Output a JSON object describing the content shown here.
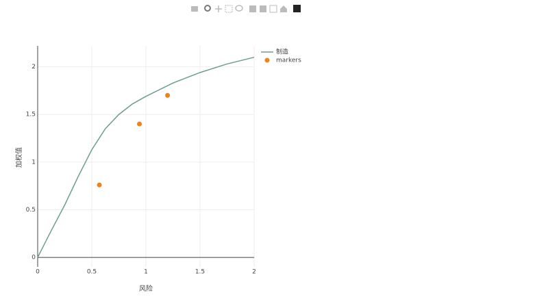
{
  "chart_data": {
    "type": "line",
    "xlabel": "风险",
    "ylabel": "加权值",
    "xlim": [
      0,
      2
    ],
    "ylim": [
      -0.1,
      2.22
    ],
    "xticks": [
      0,
      0.5,
      1,
      1.5,
      2
    ],
    "yticks": [
      0,
      0.5,
      1,
      1.5,
      2
    ],
    "grid": true,
    "legend": "top-right-outside",
    "series": [
      {
        "name": "制造",
        "mode": "lines",
        "color": "#6b9e8a",
        "x": [
          0,
          0.125,
          0.25,
          0.375,
          0.5,
          0.625,
          0.75,
          0.875,
          1,
          1.25,
          1.5,
          1.75,
          2
        ],
        "values": [
          0,
          0.28,
          0.55,
          0.85,
          1.13,
          1.35,
          1.5,
          1.61,
          1.69,
          1.83,
          1.94,
          2.03,
          2.1
        ]
      },
      {
        "name": "markers",
        "mode": "markers",
        "color": "#f0821e",
        "x": [
          0.57,
          0.94,
          1.2
        ],
        "values": [
          0.76,
          1.4,
          1.7
        ]
      }
    ]
  }
}
